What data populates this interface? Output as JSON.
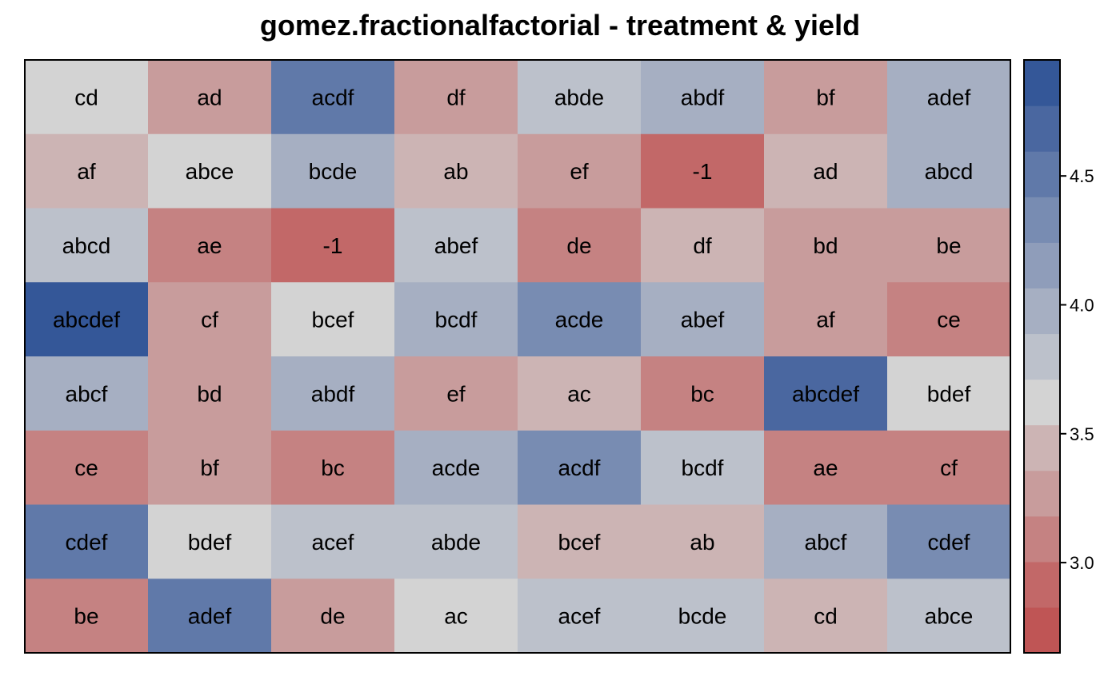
{
  "chart_data": {
    "type": "heatmap",
    "title": "gomez.fractionalfactorial - treatment & yield",
    "rows": 8,
    "cols": 8,
    "labels": [
      [
        "cd",
        "ad",
        "acdf",
        "df",
        "abde",
        "abdf",
        "bf",
        "adef"
      ],
      [
        "af",
        "abce",
        "bcde",
        "ab",
        "ef",
        "-1",
        "ad",
        "abcd"
      ],
      [
        "abcd",
        "ae",
        "-1",
        "abef",
        "de",
        "df",
        "bd",
        "be"
      ],
      [
        "abcdef",
        "cf",
        "bcef",
        "bcdf",
        "acde",
        "abef",
        "af",
        "ce"
      ],
      [
        "abcf",
        "bd",
        "abdf",
        "ef",
        "ac",
        "bc",
        "abcdef",
        "bdef"
      ],
      [
        "ce",
        "bf",
        "bc",
        "acde",
        "acdf",
        "bcdf",
        "ae",
        "cf"
      ],
      [
        "cdef",
        "bdef",
        "acef",
        "abde",
        "bcef",
        "ab",
        "abcf",
        "cdef"
      ],
      [
        "be",
        "adef",
        "de",
        "ac",
        "acef",
        "bcde",
        "cd",
        "abce"
      ]
    ],
    "values": [
      [
        3.65,
        3.25,
        4.45,
        3.25,
        3.85,
        4.05,
        3.25,
        4.05
      ],
      [
        3.45,
        3.65,
        4.05,
        3.45,
        3.25,
        2.85,
        3.45,
        4.05
      ],
      [
        3.85,
        3.05,
        2.95,
        3.85,
        3.05,
        3.45,
        3.25,
        3.25
      ],
      [
        4.85,
        3.25,
        3.65,
        4.05,
        4.25,
        4.05,
        3.25,
        3.05
      ],
      [
        4.05,
        3.25,
        4.05,
        3.25,
        3.45,
        3.05,
        4.65,
        3.65
      ],
      [
        3.05,
        3.25,
        3.05,
        4.05,
        4.25,
        3.85,
        3.05,
        3.05
      ],
      [
        4.45,
        3.65,
        3.85,
        3.85,
        3.45,
        3.45,
        4.05,
        4.25
      ],
      [
        3.05,
        4.45,
        3.25,
        3.65,
        3.85,
        3.85,
        3.45,
        3.85
      ]
    ],
    "colorbar": {
      "min": 2.65,
      "max": 4.95,
      "ticks": [
        3.0,
        3.5,
        4.0,
        4.5
      ],
      "tick_labels": [
        "3.0",
        "3.5",
        "4.0",
        "4.5"
      ],
      "colors": [
        "#bf5555",
        "#c26868",
        "#c58282",
        "#c89c9c",
        "#ccb4b4",
        "#d3d3d3",
        "#bcc1cb",
        "#a6afc2",
        "#8f9dba",
        "#788cb2",
        "#6079a9",
        "#4a67a0",
        "#345798"
      ]
    }
  }
}
